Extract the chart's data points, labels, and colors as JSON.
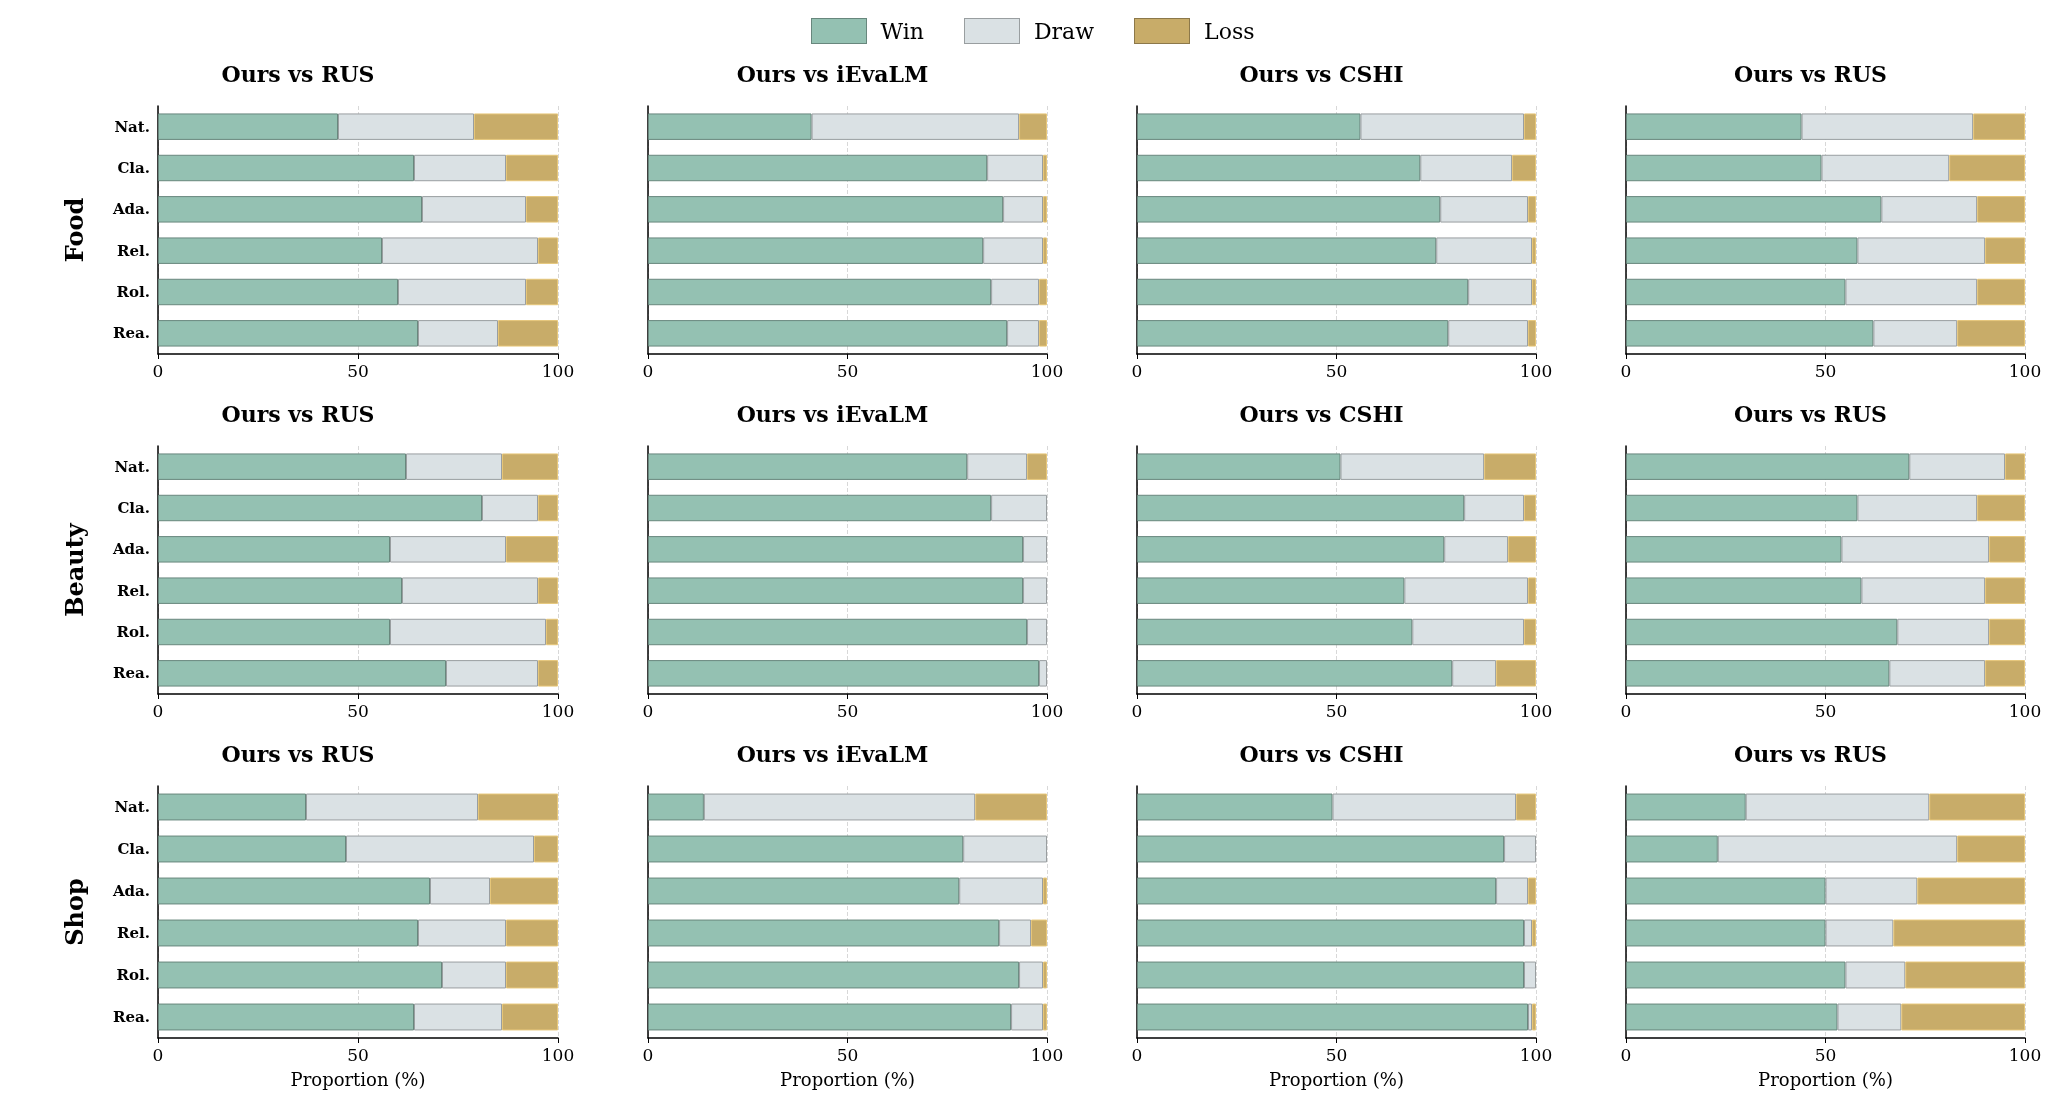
{
  "chart_data": [
    {
      "type": "bar",
      "orientation": "horizontal",
      "stacked": true,
      "title": "Ours vs RUS",
      "ylabel": "Food",
      "legend": "top",
      "grid": "x",
      "xlim": [
        0,
        100
      ],
      "xticks": [
        0,
        50,
        100
      ],
      "categories": [
        "Nat.",
        "Cla.",
        "Ada.",
        "Rel.",
        "Rol.",
        "Rea."
      ],
      "series": [
        {
          "name": "Win",
          "color": "#94c1b2",
          "values": [
            45,
            64,
            66,
            56,
            60,
            65
          ]
        },
        {
          "name": "Draw",
          "color": "#dae1e4",
          "values": [
            34,
            23,
            26,
            39,
            32,
            20
          ]
        },
        {
          "name": "Loss",
          "color": "#c8ac69",
          "values": [
            21,
            13,
            8,
            5,
            8,
            15
          ]
        }
      ]
    },
    {
      "type": "bar",
      "orientation": "horizontal",
      "stacked": true,
      "title": "Ours vs iEvaLM",
      "tick_labels": "x",
      "grid": "x",
      "xlim": [
        0,
        100
      ],
      "xticks": [
        0,
        50,
        100
      ],
      "categories": [
        null,
        null,
        null,
        null,
        null,
        null
      ],
      "series": [
        {
          "color": "#94c1b2",
          "values": [
            41,
            85,
            89,
            84,
            86,
            90
          ]
        },
        {
          "color": "#dae1e4",
          "values": [
            52,
            14,
            10,
            15,
            12,
            8
          ]
        },
        {
          "color": "#c8ac69",
          "values": [
            7,
            1,
            1,
            1,
            2,
            2
          ]
        }
      ]
    },
    {
      "type": "bar",
      "orientation": "horizontal",
      "stacked": true,
      "title": "Ours vs CSHI",
      "tick_labels": "x",
      "grid": "x",
      "xlim": [
        0,
        100
      ],
      "xticks": [
        0,
        50,
        100
      ],
      "categories": [
        null,
        null,
        null,
        null,
        null,
        null
      ],
      "series": [
        {
          "color": "#94c1b2",
          "values": [
            56,
            71,
            76,
            75,
            83,
            78
          ]
        },
        {
          "color": "#dae1e4",
          "values": [
            41,
            23,
            22,
            24,
            16,
            20
          ]
        },
        {
          "color": "#c8ac69",
          "values": [
            3,
            6,
            2,
            1,
            1,
            2
          ]
        }
      ]
    },
    {
      "type": "bar",
      "orientation": "horizontal",
      "stacked": true,
      "title": "Ours vs RUS",
      "tick_labels": "x",
      "grid": "x",
      "xlim": [
        0,
        100
      ],
      "xticks": [
        0,
        50,
        100
      ],
      "categories": [
        null,
        null,
        null,
        null,
        null,
        null
      ],
      "series": [
        {
          "color": "#94c1b2",
          "values": [
            44,
            49,
            64,
            58,
            55,
            62
          ]
        },
        {
          "color": "#dae1e4",
          "values": [
            43,
            32,
            24,
            32,
            33,
            21
          ]
        },
        {
          "color": "#c8ac69",
          "values": [
            13,
            19,
            12,
            10,
            12,
            17
          ]
        }
      ]
    },
    {
      "type": "bar",
      "orientation": "horizontal",
      "stacked": true,
      "title": "Ours vs RUS",
      "ylabel": "Beauty",
      "grid": "x",
      "xlim": [
        0,
        100
      ],
      "xticks": [
        0,
        50,
        100
      ],
      "categories": [
        "Nat.",
        "Cla.",
        "Ada.",
        "Rel.",
        "Rol.",
        "Rea."
      ],
      "series": [
        {
          "color": "#94c1b2",
          "values": [
            62,
            81,
            58,
            61,
            58,
            72
          ]
        },
        {
          "color": "#dae1e4",
          "values": [
            24,
            14,
            29,
            34,
            39,
            23
          ]
        },
        {
          "color": "#c8ac69",
          "values": [
            14,
            5,
            13,
            5,
            3,
            5
          ]
        }
      ]
    },
    {
      "type": "bar",
      "orientation": "horizontal",
      "stacked": true,
      "title": "Ours vs iEvaLM",
      "tick_labels": "x",
      "grid": "x",
      "xlim": [
        0,
        100
      ],
      "xticks": [
        0,
        50,
        100
      ],
      "categories": [
        null,
        null,
        null,
        null,
        null,
        null
      ],
      "series": [
        {
          "color": "#94c1b2",
          "values": [
            80,
            86,
            94,
            94,
            95,
            98
          ]
        },
        {
          "color": "#dae1e4",
          "values": [
            15,
            14,
            6,
            6,
            5,
            2
          ]
        },
        {
          "color": "#c8ac69",
          "values": [
            5,
            0,
            0,
            0,
            0,
            0
          ]
        }
      ]
    },
    {
      "type": "bar",
      "orientation": "horizontal",
      "stacked": true,
      "title": "Ours vs CSHI",
      "tick_labels": "x",
      "grid": "x",
      "xlim": [
        0,
        100
      ],
      "xticks": [
        0,
        50,
        100
      ],
      "categories": [
        null,
        null,
        null,
        null,
        null,
        null
      ],
      "series": [
        {
          "color": "#94c1b2",
          "values": [
            51,
            82,
            77,
            67,
            69,
            79
          ]
        },
        {
          "color": "#dae1e4",
          "values": [
            36,
            15,
            16,
            31,
            28,
            11
          ]
        },
        {
          "color": "#c8ac69",
          "values": [
            13,
            3,
            7,
            2,
            3,
            10
          ]
        }
      ]
    },
    {
      "type": "bar",
      "orientation": "horizontal",
      "stacked": true,
      "title": "Ours vs RUS",
      "tick_labels": "x",
      "grid": "x",
      "xlim": [
        0,
        100
      ],
      "xticks": [
        0,
        50,
        100
      ],
      "categories": [
        null,
        null,
        null,
        null,
        null,
        null
      ],
      "series": [
        {
          "color": "#94c1b2",
          "values": [
            71,
            58,
            54,
            59,
            68,
            66
          ]
        },
        {
          "color": "#dae1e4",
          "values": [
            24,
            30,
            37,
            31,
            23,
            24
          ]
        },
        {
          "color": "#c8ac69",
          "values": [
            5,
            12,
            9,
            10,
            9,
            10
          ]
        }
      ]
    },
    {
      "type": "bar",
      "orientation": "horizontal",
      "stacked": true,
      "title": "Ours vs RUS",
      "ylabel": "Shop",
      "xlabel": "Proportion (%)",
      "grid": "x",
      "xlim": [
        0,
        100
      ],
      "xticks": [
        0,
        50,
        100
      ],
      "categories": [
        "Nat.",
        "Cla.",
        "Ada.",
        "Rel.",
        "Rol.",
        "Rea."
      ],
      "series": [
        {
          "color": "#94c1b2",
          "values": [
            37,
            47,
            68,
            65,
            71,
            64
          ]
        },
        {
          "color": "#dae1e4",
          "values": [
            43,
            47,
            15,
            22,
            16,
            22
          ]
        },
        {
          "color": "#c8ac69",
          "values": [
            20,
            6,
            17,
            13,
            13,
            14
          ]
        }
      ]
    },
    {
      "type": "bar",
      "orientation": "horizontal",
      "stacked": true,
      "title": "Ours vs iEvaLM",
      "xlabel": "Proportion (%)",
      "tick_labels": "x",
      "grid": "x",
      "xlim": [
        0,
        100
      ],
      "xticks": [
        0,
        50,
        100
      ],
      "categories": [
        null,
        null,
        null,
        null,
        null,
        null
      ],
      "series": [
        {
          "color": "#94c1b2",
          "values": [
            14,
            79,
            78,
            88,
            93,
            91
          ]
        },
        {
          "color": "#dae1e4",
          "values": [
            68,
            21,
            21,
            8,
            6,
            8
          ]
        },
        {
          "color": "#c8ac69",
          "values": [
            18,
            0,
            1,
            4,
            1,
            1
          ]
        }
      ]
    },
    {
      "type": "bar",
      "orientation": "horizontal",
      "stacked": true,
      "title": "Ours vs CSHI",
      "xlabel": "Proportion (%)",
      "tick_labels": "x",
      "grid": "x",
      "xlim": [
        0,
        100
      ],
      "xticks": [
        0,
        50,
        100
      ],
      "categories": [
        null,
        null,
        null,
        null,
        null,
        null
      ],
      "series": [
        {
          "color": "#94c1b2",
          "values": [
            49,
            92,
            90,
            97,
            97,
            98
          ]
        },
        {
          "color": "#dae1e4",
          "values": [
            46,
            8,
            8,
            2,
            3,
            1
          ]
        },
        {
          "color": "#c8ac69",
          "values": [
            5,
            0,
            2,
            1,
            0,
            1
          ]
        }
      ]
    },
    {
      "type": "bar",
      "orientation": "horizontal",
      "stacked": true,
      "title": "Ours vs RUS",
      "xlabel": "Proportion (%)",
      "tick_labels": "x",
      "grid": "x",
      "xlim": [
        0,
        100
      ],
      "xticks": [
        0,
        50,
        100
      ],
      "categories": [
        null,
        null,
        null,
        null,
        null,
        null
      ],
      "series": [
        {
          "color": "#94c1b2",
          "values": [
            30,
            23,
            50,
            50,
            55,
            53
          ]
        },
        {
          "color": "#dae1e4",
          "values": [
            46,
            60,
            23,
            17,
            15,
            16
          ]
        },
        {
          "color": "#c8ac69",
          "values": [
            24,
            17,
            27,
            33,
            30,
            31
          ]
        }
      ]
    }
  ]
}
